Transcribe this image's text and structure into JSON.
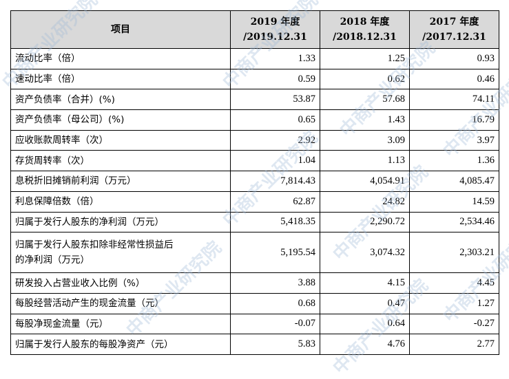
{
  "table": {
    "header": {
      "item_label": "项目",
      "columns": [
        {
          "year": "2019 年度",
          "date": "/2019.12.31"
        },
        {
          "year": "2018 年度",
          "date": "/2018.12.31"
        },
        {
          "year": "2017 年度",
          "date": "/2017.12.31"
        }
      ]
    },
    "rows": [
      {
        "label": "流动比率（倍）",
        "values": [
          "1.33",
          "1.25",
          "0.93"
        ]
      },
      {
        "label": "速动比率（倍）",
        "values": [
          "0.59",
          "0.62",
          "0.46"
        ]
      },
      {
        "label": "资产负债率（合并）(%)",
        "values": [
          "53.87",
          "57.68",
          "74.11"
        ]
      },
      {
        "label": "资产负债率（母公司）(%)",
        "values": [
          "0.65",
          "1.43",
          "16.79"
        ]
      },
      {
        "label": "应收账款周转率（次）",
        "values": [
          "2.92",
          "3.09",
          "3.97"
        ]
      },
      {
        "label": "存货周转率（次）",
        "values": [
          "1.04",
          "1.13",
          "1.36"
        ]
      },
      {
        "label": "息税折旧摊销前利润（万元）",
        "values": [
          "7,814.43",
          "4,054.91",
          "4,085.47"
        ]
      },
      {
        "label": "利息保障倍数（倍）",
        "values": [
          "62.87",
          "24.82",
          "14.59"
        ]
      },
      {
        "label": "归属于发行人股东的净利润（万元）",
        "values": [
          "5,418.35",
          "2,290.72",
          "2,534.46"
        ]
      },
      {
        "label": "归属于发行人股东扣除非经常性损益后的净利润（万元）",
        "label_line1": "归属于发行人股东扣除非经常性损益后",
        "label_line2": "的净利润（万元）",
        "values": [
          "5,195.54",
          "3,074.32",
          "2,303.21"
        ]
      },
      {
        "label": "研发投入占营业收入比例（%）",
        "values": [
          "3.88",
          "4.15",
          "4.45"
        ]
      },
      {
        "label": "每股经营活动产生的现金流量（元）",
        "values": [
          "0.68",
          "0.47",
          "1.27"
        ]
      },
      {
        "label": "每股净现金流量（元）",
        "values": [
          "-0.07",
          "0.64",
          "-0.27"
        ]
      },
      {
        "label": "归属于发行人股东的每股净资产（元）",
        "values": [
          "5.83",
          "4.76",
          "2.77"
        ]
      }
    ]
  },
  "watermark": {
    "text": "中商产业研究院"
  }
}
